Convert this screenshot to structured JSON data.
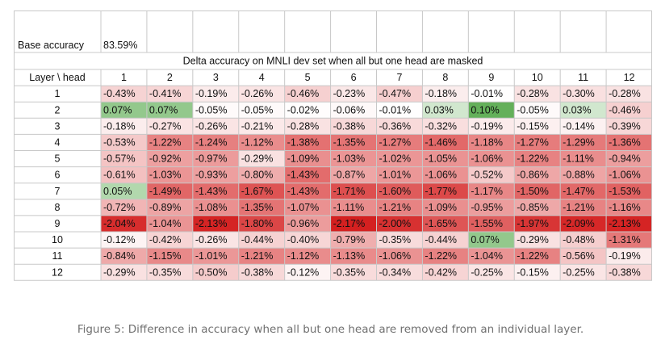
{
  "chart_data": {
    "type": "heatmap",
    "base_label": "Base accuracy",
    "base_value": "83.59%",
    "title": "Delta accuracy on MNLI dev set when all but one head are masked",
    "corner_label": "Layer \\ head",
    "x": [
      "1",
      "2",
      "3",
      "4",
      "5",
      "6",
      "7",
      "8",
      "9",
      "10",
      "11",
      "12"
    ],
    "y": [
      "1",
      "2",
      "3",
      "4",
      "5",
      "6",
      "7",
      "8",
      "9",
      "10",
      "11",
      "12"
    ],
    "unit": "%",
    "values": [
      [
        -0.43,
        -0.41,
        -0.19,
        -0.26,
        -0.46,
        -0.23,
        -0.47,
        -0.18,
        -0.01,
        -0.28,
        -0.3,
        -0.28
      ],
      [
        0.07,
        0.07,
        -0.05,
        -0.05,
        -0.02,
        -0.06,
        -0.01,
        0.03,
        0.1,
        -0.05,
        0.03,
        -0.46
      ],
      [
        -0.18,
        -0.27,
        -0.26,
        -0.21,
        -0.28,
        -0.38,
        -0.36,
        -0.32,
        -0.19,
        -0.15,
        -0.14,
        -0.39
      ],
      [
        -0.53,
        -1.22,
        -1.24,
        -1.12,
        -1.38,
        -1.35,
        -1.27,
        -1.46,
        -1.18,
        -1.27,
        -1.29,
        -1.36
      ],
      [
        -0.57,
        -0.92,
        -0.97,
        -0.29,
        -1.09,
        -1.03,
        -1.02,
        -1.05,
        -1.06,
        -1.22,
        -1.11,
        -0.94
      ],
      [
        -0.61,
        -1.03,
        -0.93,
        -0.8,
        -1.43,
        -0.87,
        -1.01,
        -1.06,
        -0.52,
        -0.86,
        -0.88,
        -1.06
      ],
      [
        0.05,
        -1.49,
        -1.43,
        -1.67,
        -1.43,
        -1.71,
        -1.6,
        -1.77,
        -1.17,
        -1.5,
        -1.47,
        -1.53
      ],
      [
        -0.72,
        -0.89,
        -1.08,
        -1.35,
        -1.07,
        -1.11,
        -1.21,
        -1.09,
        -0.95,
        -0.85,
        -1.21,
        -1.16
      ],
      [
        -2.04,
        -1.04,
        -2.13,
        -1.8,
        -0.96,
        -2.17,
        -2.0,
        -1.65,
        -1.55,
        -1.97,
        -2.09,
        -2.13
      ],
      [
        -0.12,
        -0.42,
        -0.26,
        -0.44,
        -0.4,
        -0.79,
        -0.35,
        -0.44,
        0.07,
        -0.29,
        -0.48,
        -1.31
      ],
      [
        -0.84,
        -1.15,
        -1.01,
        -1.21,
        -1.12,
        -1.13,
        -1.06,
        -1.22,
        -1.04,
        -1.22,
        -0.56,
        -0.19
      ],
      [
        -0.29,
        -0.35,
        -0.5,
        -0.38,
        -0.12,
        -0.35,
        -0.34,
        -0.42,
        -0.25,
        -0.15,
        -0.25,
        -0.38
      ]
    ],
    "colors": {
      "negative": "#d42020",
      "positive": "#64b05a",
      "neutral": "#ffffff",
      "grid": "#c8c8c8",
      "text": "#111111"
    }
  },
  "caption": "Figure 5: Difference in accuracy when all but one head are removed from an individual layer."
}
